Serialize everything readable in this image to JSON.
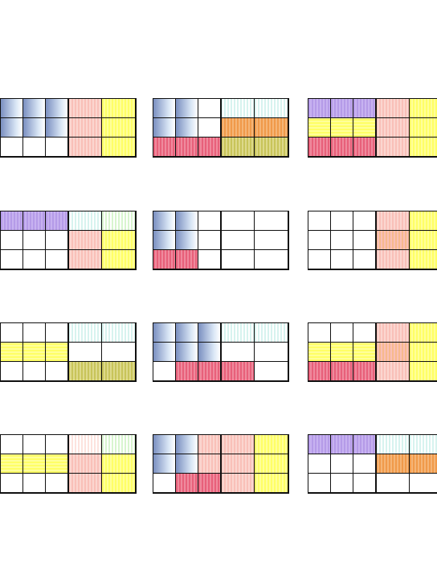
{
  "colors": {
    "blue": "#7a8fc0",
    "blue_light": "#d9e6f5",
    "purple": "#b59be8",
    "yellow": "#ffff66",
    "salmon": "#f9c0b8",
    "pink": "#e8607a",
    "teal_light": "#d7f3ef",
    "green_light": "#d8f5cf",
    "orange": "#f09a4a",
    "olive": "#c8c45a",
    "line": "#111111"
  },
  "panels": [
    {
      "left_tiles": [
        {
          "r": 0,
          "c": 0,
          "kind": "blue"
        },
        {
          "r": 0,
          "c": 1,
          "kind": "blue"
        },
        {
          "r": 0,
          "c": 2,
          "kind": "blue"
        },
        {
          "r": 1,
          "c": 0,
          "kind": "blue"
        },
        {
          "r": 1,
          "c": 1,
          "kind": "blue"
        },
        {
          "r": 1,
          "c": 2,
          "kind": "blue"
        },
        {
          "r": 2,
          "c": 0,
          "kind": "empty"
        },
        {
          "r": 2,
          "c": 1,
          "kind": "empty"
        },
        {
          "r": 2,
          "c": 2,
          "kind": "empty"
        }
      ],
      "right_tiles": [
        {
          "r": 0,
          "c": 0,
          "kind": "salmon"
        },
        {
          "r": 0,
          "c": 1,
          "kind": "yellow"
        },
        {
          "r": 1,
          "c": 0,
          "kind": "salmon"
        },
        {
          "r": 1,
          "c": 1,
          "kind": "yellow"
        },
        {
          "r": 2,
          "c": 0,
          "kind": "salmon"
        },
        {
          "r": 2,
          "c": 1,
          "kind": "yellow"
        }
      ]
    },
    {
      "left_tiles": [
        {
          "r": 0,
          "c": 0,
          "kind": "blue"
        },
        {
          "r": 0,
          "c": 1,
          "kind": "blue"
        },
        {
          "r": 0,
          "c": 2,
          "kind": "empty"
        },
        {
          "r": 1,
          "c": 0,
          "kind": "blue"
        },
        {
          "r": 1,
          "c": 1,
          "kind": "blue"
        },
        {
          "r": 1,
          "c": 2,
          "kind": "empty"
        },
        {
          "r": 2,
          "c": 0,
          "kind": "pink"
        },
        {
          "r": 2,
          "c": 1,
          "kind": "pink"
        },
        {
          "r": 2,
          "c": 2,
          "kind": "pink"
        }
      ],
      "right_tiles": [
        {
          "r": 0,
          "c": 0,
          "kind": "teal"
        },
        {
          "r": 0,
          "c": 1,
          "kind": "teal"
        },
        {
          "r": 1,
          "c": 0,
          "kind": "orange"
        },
        {
          "r": 1,
          "c": 1,
          "kind": "orange"
        },
        {
          "r": 2,
          "c": 0,
          "kind": "olive"
        },
        {
          "r": 2,
          "c": 1,
          "kind": "olive"
        }
      ]
    },
    {
      "left_tiles": [
        {
          "r": 0,
          "c": 0,
          "kind": "purple"
        },
        {
          "r": 0,
          "c": 1,
          "kind": "purple"
        },
        {
          "r": 0,
          "c": 2,
          "kind": "purple"
        },
        {
          "r": 1,
          "c": 0,
          "kind": "yellow_h"
        },
        {
          "r": 1,
          "c": 1,
          "kind": "yellow_h"
        },
        {
          "r": 1,
          "c": 2,
          "kind": "yellow_h"
        },
        {
          "r": 2,
          "c": 0,
          "kind": "pink"
        },
        {
          "r": 2,
          "c": 1,
          "kind": "pink"
        },
        {
          "r": 2,
          "c": 2,
          "kind": "pink"
        }
      ],
      "right_tiles": [
        {
          "r": 0,
          "c": 0,
          "kind": "salmon"
        },
        {
          "r": 0,
          "c": 1,
          "kind": "yellow"
        },
        {
          "r": 1,
          "c": 0,
          "kind": "salmon"
        },
        {
          "r": 1,
          "c": 1,
          "kind": "yellow"
        },
        {
          "r": 2,
          "c": 0,
          "kind": "salmon"
        },
        {
          "r": 2,
          "c": 1,
          "kind": "yellow"
        }
      ]
    },
    {
      "left_tiles": [
        {
          "r": 0,
          "c": 0,
          "kind": "purple"
        },
        {
          "r": 0,
          "c": 1,
          "kind": "purple"
        },
        {
          "r": 0,
          "c": 2,
          "kind": "purple"
        },
        {
          "r": 1,
          "c": 0,
          "kind": "empty"
        },
        {
          "r": 1,
          "c": 1,
          "kind": "empty"
        },
        {
          "r": 1,
          "c": 2,
          "kind": "empty"
        },
        {
          "r": 2,
          "c": 0,
          "kind": "empty"
        },
        {
          "r": 2,
          "c": 1,
          "kind": "empty"
        },
        {
          "r": 2,
          "c": 2,
          "kind": "empty"
        }
      ],
      "right_tiles": [
        {
          "r": 0,
          "c": 0,
          "kind": "teal"
        },
        {
          "r": 0,
          "c": 1,
          "kind": "green"
        },
        {
          "r": 1,
          "c": 0,
          "kind": "salmon"
        },
        {
          "r": 1,
          "c": 1,
          "kind": "yellow"
        },
        {
          "r": 2,
          "c": 0,
          "kind": "salmon"
        },
        {
          "r": 2,
          "c": 1,
          "kind": "yellow"
        }
      ]
    },
    {
      "left_tiles": [
        {
          "r": 0,
          "c": 0,
          "kind": "blue"
        },
        {
          "r": 0,
          "c": 1,
          "kind": "blue"
        },
        {
          "r": 0,
          "c": 2,
          "kind": "empty"
        },
        {
          "r": 1,
          "c": 0,
          "kind": "blue"
        },
        {
          "r": 1,
          "c": 1,
          "kind": "blue"
        },
        {
          "r": 1,
          "c": 2,
          "kind": "empty"
        },
        {
          "r": 2,
          "c": 0,
          "kind": "pink"
        },
        {
          "r": 2,
          "c": 1,
          "kind": "pink"
        },
        {
          "r": 2,
          "c": 2,
          "kind": "empty"
        }
      ],
      "right_tiles": [
        {
          "r": 0,
          "c": 0,
          "kind": "empty"
        },
        {
          "r": 0,
          "c": 1,
          "kind": "empty"
        },
        {
          "r": 1,
          "c": 0,
          "kind": "empty"
        },
        {
          "r": 1,
          "c": 1,
          "kind": "empty"
        },
        {
          "r": 2,
          "c": 0,
          "kind": "empty"
        },
        {
          "r": 2,
          "c": 1,
          "kind": "empty"
        }
      ]
    },
    {
      "left_tiles": [
        {
          "r": 0,
          "c": 0,
          "kind": "empty"
        },
        {
          "r": 0,
          "c": 1,
          "kind": "empty"
        },
        {
          "r": 0,
          "c": 2,
          "kind": "empty"
        },
        {
          "r": 1,
          "c": 0,
          "kind": "empty"
        },
        {
          "r": 1,
          "c": 1,
          "kind": "empty"
        },
        {
          "r": 1,
          "c": 2,
          "kind": "empty"
        },
        {
          "r": 2,
          "c": 0,
          "kind": "empty"
        },
        {
          "r": 2,
          "c": 1,
          "kind": "empty"
        },
        {
          "r": 2,
          "c": 2,
          "kind": "empty"
        }
      ],
      "right_tiles": [
        {
          "r": 0,
          "c": 0,
          "kind": "salmon"
        },
        {
          "r": 0,
          "c": 1,
          "kind": "yellow"
        },
        {
          "r": 1,
          "c": 0,
          "kind": "orange_soft"
        },
        {
          "r": 1,
          "c": 1,
          "kind": "yellow"
        },
        {
          "r": 2,
          "c": 0,
          "kind": "salmon"
        },
        {
          "r": 2,
          "c": 1,
          "kind": "yellow"
        }
      ]
    },
    {
      "left_tiles": [
        {
          "r": 0,
          "c": 0,
          "kind": "empty"
        },
        {
          "r": 0,
          "c": 1,
          "kind": "empty"
        },
        {
          "r": 0,
          "c": 2,
          "kind": "empty"
        },
        {
          "r": 1,
          "c": 0,
          "kind": "yellow_h"
        },
        {
          "r": 1,
          "c": 1,
          "kind": "yellow_h"
        },
        {
          "r": 1,
          "c": 2,
          "kind": "yellow_h"
        },
        {
          "r": 2,
          "c": 0,
          "kind": "empty"
        },
        {
          "r": 2,
          "c": 1,
          "kind": "empty"
        },
        {
          "r": 2,
          "c": 2,
          "kind": "empty"
        }
      ],
      "right_tiles": [
        {
          "r": 0,
          "c": 0,
          "kind": "teal"
        },
        {
          "r": 0,
          "c": 1,
          "kind": "teal"
        },
        {
          "r": 1,
          "c": 0,
          "kind": "empty"
        },
        {
          "r": 1,
          "c": 1,
          "kind": "empty"
        },
        {
          "r": 2,
          "c": 0,
          "kind": "olive"
        },
        {
          "r": 2,
          "c": 1,
          "kind": "olive"
        }
      ]
    },
    {
      "left_tiles": [
        {
          "r": 0,
          "c": 0,
          "kind": "blue"
        },
        {
          "r": 0,
          "c": 1,
          "kind": "blue"
        },
        {
          "r": 0,
          "c": 2,
          "kind": "blue"
        },
        {
          "r": 1,
          "c": 0,
          "kind": "blue"
        },
        {
          "r": 1,
          "c": 1,
          "kind": "blue"
        },
        {
          "r": 1,
          "c": 2,
          "kind": "blue"
        },
        {
          "r": 2,
          "c": 0,
          "kind": "empty"
        },
        {
          "r": 2,
          "c": 1,
          "kind": "pink"
        },
        {
          "r": 2,
          "c": 2,
          "kind": "pink"
        }
      ],
      "right_tiles": [
        {
          "r": 0,
          "c": 0,
          "kind": "teal"
        },
        {
          "r": 0,
          "c": 1,
          "kind": "teal"
        },
        {
          "r": 1,
          "c": 0,
          "kind": "empty"
        },
        {
          "r": 1,
          "c": 1,
          "kind": "empty"
        },
        {
          "r": 2,
          "c": 0,
          "kind": "pink"
        },
        {
          "r": 2,
          "c": 1,
          "kind": "empty"
        }
      ]
    },
    {
      "left_tiles": [
        {
          "r": 0,
          "c": 0,
          "kind": "empty"
        },
        {
          "r": 0,
          "c": 1,
          "kind": "empty"
        },
        {
          "r": 0,
          "c": 2,
          "kind": "empty"
        },
        {
          "r": 1,
          "c": 0,
          "kind": "yellow_h"
        },
        {
          "r": 1,
          "c": 1,
          "kind": "yellow_h"
        },
        {
          "r": 1,
          "c": 2,
          "kind": "yellow_h"
        },
        {
          "r": 2,
          "c": 0,
          "kind": "pink"
        },
        {
          "r": 2,
          "c": 1,
          "kind": "pink"
        },
        {
          "r": 2,
          "c": 2,
          "kind": "pink"
        }
      ],
      "right_tiles": [
        {
          "r": 0,
          "c": 0,
          "kind": "salmon"
        },
        {
          "r": 0,
          "c": 1,
          "kind": "yellow"
        },
        {
          "r": 1,
          "c": 0,
          "kind": "orange_soft"
        },
        {
          "r": 1,
          "c": 1,
          "kind": "yellow"
        },
        {
          "r": 2,
          "c": 0,
          "kind": "salmon"
        },
        {
          "r": 2,
          "c": 1,
          "kind": "yellow"
        }
      ]
    },
    {
      "left_tiles": [
        {
          "r": 0,
          "c": 0,
          "kind": "empty"
        },
        {
          "r": 0,
          "c": 1,
          "kind": "empty"
        },
        {
          "r": 0,
          "c": 2,
          "kind": "empty"
        },
        {
          "r": 1,
          "c": 0,
          "kind": "yellow_h"
        },
        {
          "r": 1,
          "c": 1,
          "kind": "yellow_h"
        },
        {
          "r": 1,
          "c": 2,
          "kind": "yellow_h"
        },
        {
          "r": 2,
          "c": 0,
          "kind": "empty"
        },
        {
          "r": 2,
          "c": 1,
          "kind": "empty"
        },
        {
          "r": 2,
          "c": 2,
          "kind": "empty"
        }
      ],
      "right_tiles": [
        {
          "r": 0,
          "c": 0,
          "kind": "salmon_light"
        },
        {
          "r": 0,
          "c": 1,
          "kind": "green"
        },
        {
          "r": 1,
          "c": 0,
          "kind": "salmon"
        },
        {
          "r": 1,
          "c": 1,
          "kind": "yellow"
        },
        {
          "r": 2,
          "c": 0,
          "kind": "salmon"
        },
        {
          "r": 2,
          "c": 1,
          "kind": "yellow"
        }
      ]
    },
    {
      "left_tiles": [
        {
          "r": 0,
          "c": 0,
          "kind": "blue"
        },
        {
          "r": 0,
          "c": 1,
          "kind": "blue"
        },
        {
          "r": 0,
          "c": 2,
          "kind": "salmon"
        },
        {
          "r": 1,
          "c": 0,
          "kind": "blue"
        },
        {
          "r": 1,
          "c": 1,
          "kind": "blue"
        },
        {
          "r": 1,
          "c": 2,
          "kind": "salmon"
        },
        {
          "r": 2,
          "c": 0,
          "kind": "empty"
        },
        {
          "r": 2,
          "c": 1,
          "kind": "pink"
        },
        {
          "r": 2,
          "c": 2,
          "kind": "pink"
        }
      ],
      "right_tiles": [
        {
          "r": 0,
          "c": 0,
          "kind": "salmon"
        },
        {
          "r": 0,
          "c": 1,
          "kind": "yellow"
        },
        {
          "r": 1,
          "c": 0,
          "kind": "salmon"
        },
        {
          "r": 1,
          "c": 1,
          "kind": "yellow"
        },
        {
          "r": 2,
          "c": 0,
          "kind": "salmon"
        },
        {
          "r": 2,
          "c": 1,
          "kind": "yellow"
        }
      ]
    },
    {
      "left_tiles": [
        {
          "r": 0,
          "c": 0,
          "kind": "purple"
        },
        {
          "r": 0,
          "c": 1,
          "kind": "purple"
        },
        {
          "r": 0,
          "c": 2,
          "kind": "purple"
        },
        {
          "r": 1,
          "c": 0,
          "kind": "empty"
        },
        {
          "r": 1,
          "c": 1,
          "kind": "empty"
        },
        {
          "r": 1,
          "c": 2,
          "kind": "empty"
        },
        {
          "r": 2,
          "c": 0,
          "kind": "empty"
        },
        {
          "r": 2,
          "c": 1,
          "kind": "empty"
        },
        {
          "r": 2,
          "c": 2,
          "kind": "empty"
        }
      ],
      "right_tiles": [
        {
          "r": 0,
          "c": 0,
          "kind": "teal"
        },
        {
          "r": 0,
          "c": 1,
          "kind": "teal"
        },
        {
          "r": 1,
          "c": 0,
          "kind": "orange"
        },
        {
          "r": 1,
          "c": 1,
          "kind": "orange"
        },
        {
          "r": 2,
          "c": 0,
          "kind": "empty"
        },
        {
          "r": 2,
          "c": 1,
          "kind": "empty"
        }
      ]
    }
  ]
}
